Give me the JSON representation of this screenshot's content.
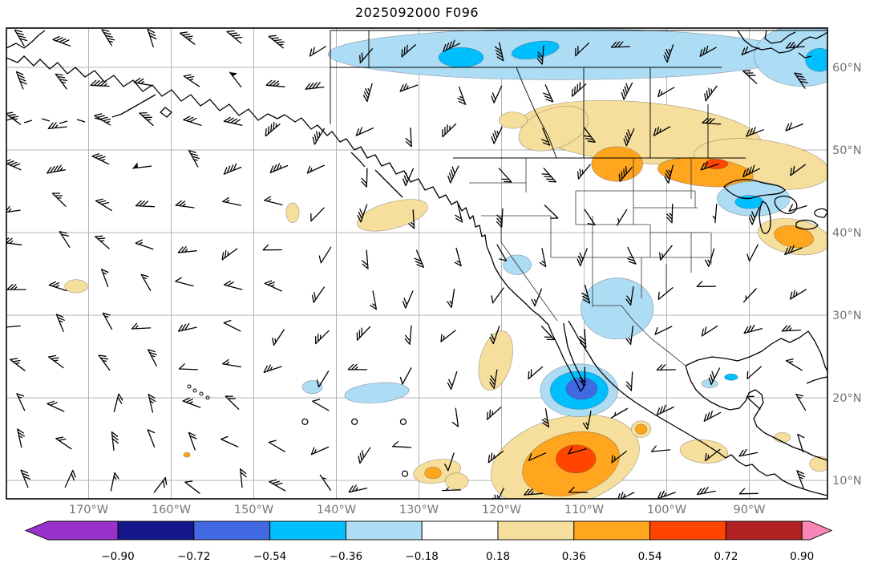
{
  "title": "2025092000 F096",
  "chart_data": {
    "type": "heatmap",
    "description": "Forecast map: wind barbs with shaded anomaly contours over the Northeast Pacific, North America and Mexico",
    "title": "2025092000 F096",
    "x_tick_labels": [
      "170°W",
      "160°W",
      "150°W",
      "140°W",
      "130°W",
      "120°W",
      "110°W",
      "100°W",
      "90°W"
    ],
    "x_ticks_deg_w": [
      170,
      160,
      150,
      140,
      130,
      120,
      110,
      100,
      90
    ],
    "y_tick_labels": [
      "10°N",
      "20°N",
      "30°N",
      "40°N",
      "50°N",
      "60°N"
    ],
    "y_ticks_deg_n": [
      10,
      20,
      30,
      40,
      50,
      60
    ],
    "colorbar": {
      "tick_labels": [
        "−0.90",
        "−0.72",
        "−0.54",
        "−0.36",
        "−0.18",
        "0.18",
        "0.36",
        "0.54",
        "0.72",
        "0.90"
      ],
      "levels": [
        -0.9,
        -0.72,
        -0.54,
        -0.36,
        -0.18,
        0.18,
        0.36,
        0.54,
        0.72,
        0.9
      ],
      "segment_colors": [
        "#16168C",
        "#4169E1",
        "#00BFFF",
        "#ADDCF5",
        "#FFFFFF",
        "#F6DE9C",
        "#FFA51E",
        "#FF4500",
        "#B22222"
      ],
      "under_color": "#9932CC",
      "over_color": "#F986B7"
    },
    "anomalies": [
      {
        "lon_w": 112.8,
        "lat_n": 61.6,
        "rlon": 28.2,
        "rlat": 3.1,
        "rot": 0,
        "v": -0.25
      },
      {
        "lon_w": 83.6,
        "lat_n": 61.4,
        "rlon": 5.8,
        "rlat": 3.7,
        "rot": 0,
        "v": -0.25
      },
      {
        "lon_w": 124.9,
        "lat_n": 61.2,
        "rlon": 2.7,
        "rlat": 1.2,
        "rot": 0,
        "v": -0.45
      },
      {
        "lon_w": 115.9,
        "lat_n": 62.1,
        "rlon": 2.9,
        "rlat": 1.0,
        "rot": -10,
        "v": -0.45
      },
      {
        "lon_w": 81.5,
        "lat_n": 60.9,
        "rlon": 1.7,
        "rlat": 1.4,
        "rot": 0,
        "v": -0.45
      },
      {
        "lon_w": 103.1,
        "lat_n": 52.1,
        "rlon": 14.6,
        "rlat": 3.7,
        "rot": 5,
        "v": 0.25
      },
      {
        "lon_w": 88.5,
        "lat_n": 48.3,
        "rlon": 8.3,
        "rlat": 2.9,
        "rot": 8,
        "v": 0.25
      },
      {
        "lon_w": 113.7,
        "lat_n": 52.6,
        "rlon": 4.4,
        "rlat": 2.4,
        "rot": -20,
        "v": 0.25
      },
      {
        "lon_w": 118.6,
        "lat_n": 53.6,
        "rlon": 1.7,
        "rlat": 1.0,
        "rot": 0,
        "v": 0.25
      },
      {
        "lon_w": 106.0,
        "lat_n": 48.3,
        "rlon": 3.1,
        "rlat": 2.1,
        "rot": 0,
        "v": 0.45
      },
      {
        "lon_w": 95.3,
        "lat_n": 47.3,
        "rlon": 5.8,
        "rlat": 1.7,
        "rot": 5,
        "v": 0.45
      },
      {
        "lon_w": 94.0,
        "lat_n": 48.3,
        "rlon": 1.4,
        "rlat": 0.6,
        "rot": 0,
        "v": 0.65
      },
      {
        "lon_w": 133.2,
        "lat_n": 42.1,
        "rlon": 4.4,
        "rlat": 1.6,
        "rot": -15,
        "v": 0.25
      },
      {
        "lon_w": 145.3,
        "lat_n": 42.4,
        "rlon": 0.8,
        "rlat": 1.2,
        "rot": 0,
        "v": 0.25
      },
      {
        "lon_w": 89.5,
        "lat_n": 44.1,
        "rlon": 4.4,
        "rlat": 2.1,
        "rot": 0,
        "v": -0.25
      },
      {
        "lon_w": 90.0,
        "lat_n": 43.7,
        "rlon": 1.7,
        "rlat": 0.8,
        "rot": 0,
        "v": -0.45
      },
      {
        "lon_w": 84.6,
        "lat_n": 39.5,
        "rlon": 4.4,
        "rlat": 2.1,
        "rot": 10,
        "v": 0.25
      },
      {
        "lon_w": 84.6,
        "lat_n": 39.5,
        "rlon": 2.4,
        "rlat": 1.3,
        "rot": 10,
        "v": 0.45
      },
      {
        "lon_w": 118.1,
        "lat_n": 36.1,
        "rlon": 1.7,
        "rlat": 1.2,
        "rot": 0,
        "v": -0.25
      },
      {
        "lon_w": 106.0,
        "lat_n": 30.8,
        "rlon": 4.4,
        "rlat": 3.7,
        "rot": 0,
        "v": -0.25
      },
      {
        "lon_w": 171.5,
        "lat_n": 33.5,
        "rlon": 1.4,
        "rlat": 0.8,
        "rot": 0,
        "v": 0.25
      },
      {
        "lon_w": 135.1,
        "lat_n": 20.6,
        "rlon": 3.9,
        "rlat": 1.2,
        "rot": -5,
        "v": -0.25
      },
      {
        "lon_w": 142.9,
        "lat_n": 21.3,
        "rlon": 1.2,
        "rlat": 0.8,
        "rot": 0,
        "v": -0.25
      },
      {
        "lon_w": 120.7,
        "lat_n": 24.5,
        "rlon": 1.9,
        "rlat": 3.7,
        "rot": 15,
        "v": 0.25
      },
      {
        "lon_w": 110.6,
        "lat_n": 20.9,
        "rlon": 4.7,
        "rlat": 3.2,
        "rot": 0,
        "v": -0.25
      },
      {
        "lon_w": 110.6,
        "lat_n": 20.9,
        "rlon": 3.5,
        "rlat": 2.3,
        "rot": 0,
        "v": -0.45
      },
      {
        "lon_w": 110.3,
        "lat_n": 21.1,
        "rlon": 1.9,
        "rlat": 1.3,
        "rot": 0,
        "v": -0.65
      },
      {
        "lon_w": 112.3,
        "lat_n": 12.3,
        "rlon": 9.2,
        "rlat": 5.3,
        "rot": -15,
        "v": 0.25
      },
      {
        "lon_w": 111.6,
        "lat_n": 12.0,
        "rlon": 6.0,
        "rlat": 3.7,
        "rot": -15,
        "v": 0.45
      },
      {
        "lon_w": 111.0,
        "lat_n": 12.6,
        "rlon": 2.4,
        "rlat": 1.7,
        "rot": 0,
        "v": 0.65
      },
      {
        "lon_w": 127.8,
        "lat_n": 11.1,
        "rlon": 2.9,
        "rlat": 1.4,
        "rot": -10,
        "v": 0.25
      },
      {
        "lon_w": 128.3,
        "lat_n": 10.9,
        "rlon": 1.0,
        "rlat": 0.7,
        "rot": 0,
        "v": 0.45
      },
      {
        "lon_w": 125.4,
        "lat_n": 9.9,
        "rlon": 1.4,
        "rlat": 1.0,
        "rot": 0,
        "v": 0.25
      },
      {
        "lon_w": 103.1,
        "lat_n": 16.2,
        "rlon": 1.2,
        "rlat": 1.0,
        "rot": 0,
        "v": 0.25
      },
      {
        "lon_w": 103.1,
        "lat_n": 16.2,
        "rlon": 0.7,
        "rlat": 0.6,
        "rot": 0,
        "v": 0.45
      },
      {
        "lon_w": 95.5,
        "lat_n": 13.5,
        "rlon": 2.9,
        "rlat": 1.4,
        "rot": 5,
        "v": 0.25
      },
      {
        "lon_w": 81.5,
        "lat_n": 12.0,
        "rlon": 1.2,
        "rlat": 0.9,
        "rot": 0,
        "v": 0.25
      },
      {
        "lon_w": 86.0,
        "lat_n": 15.2,
        "rlon": 1.0,
        "rlat": 0.6,
        "rot": 0,
        "v": 0.25
      },
      {
        "lon_w": 94.8,
        "lat_n": 21.7,
        "rlon": 1.0,
        "rlat": 0.5,
        "rot": 0,
        "v": -0.25
      },
      {
        "lon_w": 92.2,
        "lat_n": 22.5,
        "rlon": 0.8,
        "rlat": 0.4,
        "rot": 0,
        "v": -0.45
      },
      {
        "lon_w": 158.1,
        "lat_n": 13.1,
        "rlon": 0.4,
        "rlat": 0.3,
        "rot": 0,
        "v": 0.45
      }
    ],
    "calm_markers": [
      {
        "lon_w": 143.8,
        "lat_n": 17.1
      },
      {
        "lon_w": 137.8,
        "lat_n": 17.1
      },
      {
        "lon_w": 131.9,
        "lat_n": 17.1
      },
      {
        "lon_w": 131.7,
        "lat_n": 10.8
      }
    ],
    "wind_barbs": {
      "grid_cols": 19,
      "grid_rows": 12,
      "seed": 11
    }
  }
}
